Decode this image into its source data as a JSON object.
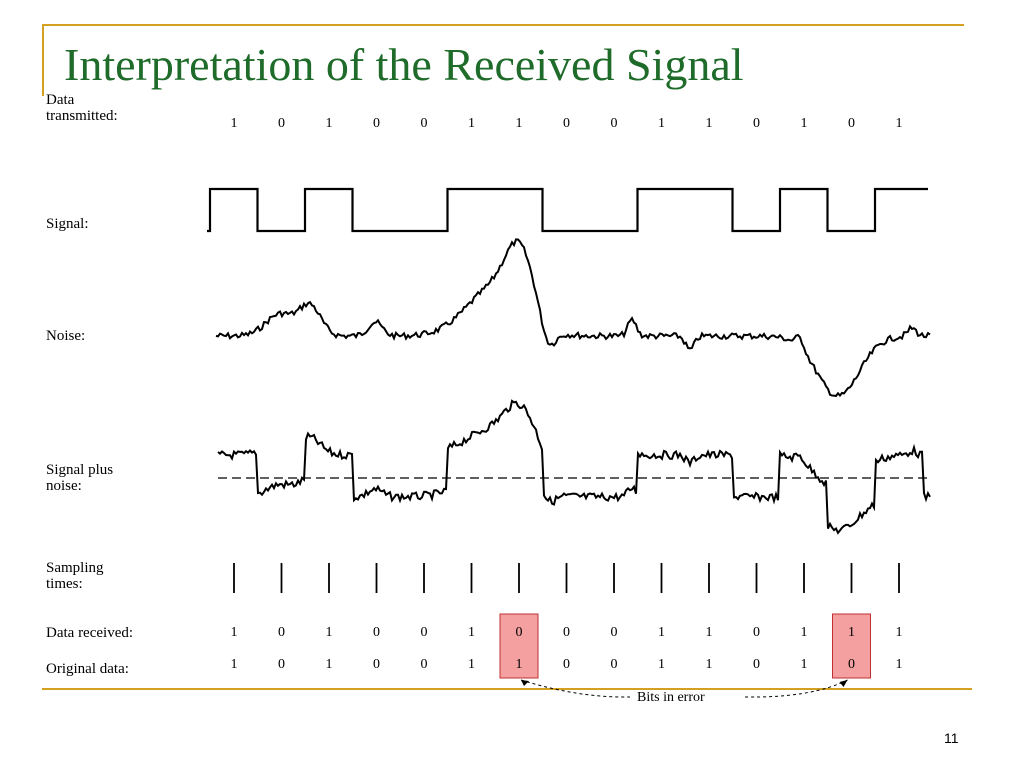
{
  "slide": {
    "title": "Interpretation of the Received Signal",
    "page_number": "11"
  },
  "labels": {
    "data_transmitted_1": "Data",
    "data_transmitted_2": "transmitted:",
    "signal": "Signal:",
    "noise": "Noise:",
    "signal_plus_noise_1": "Signal plus",
    "signal_plus_noise_2": "noise:",
    "sampling_times_1": "Sampling",
    "sampling_times_2": "times:",
    "data_received": "Data received:",
    "original_data": "Original data:",
    "bits_in_error": "Bits in error"
  },
  "bits": {
    "transmitted": [
      "1",
      "0",
      "1",
      "0",
      "0",
      "1",
      "1",
      "0",
      "0",
      "1",
      "1",
      "0",
      "1",
      "0",
      "1"
    ],
    "received": [
      "1",
      "0",
      "1",
      "0",
      "0",
      "1",
      "0",
      "0",
      "0",
      "1",
      "1",
      "0",
      "1",
      "1",
      "1"
    ],
    "original": [
      "1",
      "0",
      "1",
      "0",
      "0",
      "1",
      "1",
      "0",
      "0",
      "1",
      "1",
      "0",
      "1",
      "0",
      "1"
    ],
    "error_indices": [
      6,
      13
    ]
  },
  "colors": {
    "title": "#1e6b2a",
    "rule": "#d4a020",
    "error_box": "#f4a0a0",
    "error_border": "#c03030"
  }
}
